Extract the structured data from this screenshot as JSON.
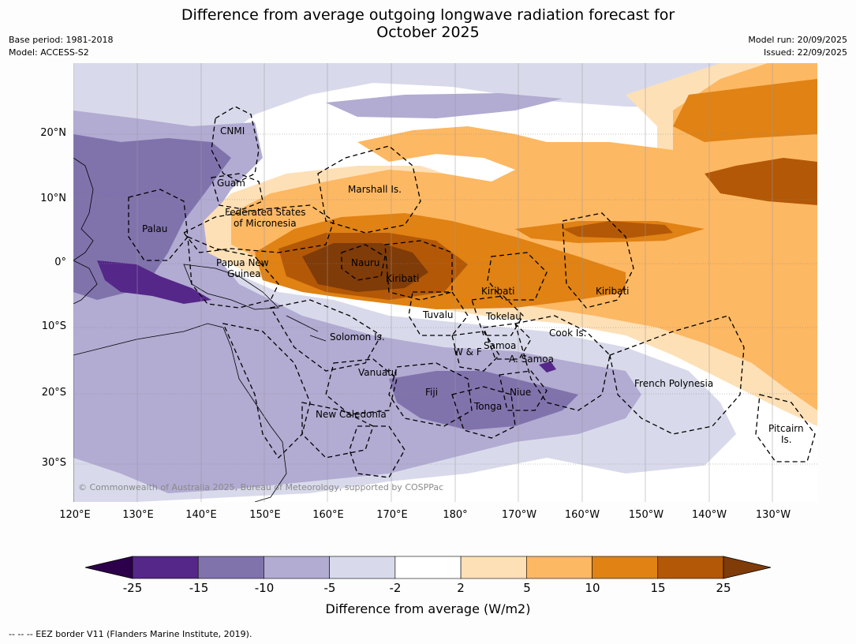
{
  "title_line1": "Difference from average outgoing longwave radiation forecast for",
  "title_line2": "October 2025",
  "base_period": "Base period: 1981-2018",
  "model": "Model: ACCESS-S2",
  "model_run": "Model run: 20/09/2025",
  "issued": "Issued: 22/09/2025",
  "longitude_labels": [
    "120°E",
    "130°E",
    "140°E",
    "150°E",
    "160°E",
    "170°E",
    "180°",
    "170°W",
    "160°W",
    "150°W",
    "140°W",
    "130°W"
  ],
  "latitude_labels": [
    "20°N",
    "10°N",
    "0°",
    "10°S",
    "20°S",
    "30°S"
  ],
  "regions": {
    "cnmi": "CNMI",
    "guam": "Guam",
    "marshall": "Marshall Is.",
    "fsm_1": "Federated States",
    "fsm_2": "of Micronesia",
    "palau": "Palau",
    "png_1": "Papua New",
    "png_2": "Guinea",
    "nauru": "Nauru",
    "kiribati_west": "Kiribati",
    "kiribati_central": "Kiribati",
    "kiribati_east": "Kiribati",
    "tuvalu": "Tuvalu",
    "tokelau": "Tokelau",
    "cook": "Cook Is.",
    "solomon": "Solomon Is.",
    "wallis": "W & F",
    "samoa": "Samoa",
    "am_samoa": "A. Samoa",
    "vanuatu": "Vanuatu",
    "fiji": "Fiji",
    "niue": "Niue",
    "tonga": "Tonga",
    "french_polynesia": "French Polynesia",
    "new_caledonia": "New Caledonia",
    "pitcairn_1": "Pitcairn",
    "pitcairn_2": "Is."
  },
  "copyright": "© Commonwealth of Australia 2025, Bureau of Meteorology, supported by COSPPac",
  "colorbar": {
    "ticks": [
      "-25",
      "-15",
      "-10",
      "-5",
      "-2",
      "2",
      "5",
      "10",
      "15",
      "25"
    ],
    "colors": [
      "#2d004b",
      "#542788",
      "#8073ac",
      "#b2abd2",
      "#d8daeb",
      "#ffffff",
      "#fee0b6",
      "#fdb863",
      "#e08214",
      "#b35806",
      "#7f3b08"
    ],
    "label": "Difference from average (W/m2)"
  },
  "footnote": "--  --  -- EEZ border V11 (Flanders Marine Institute, 2019)."
}
